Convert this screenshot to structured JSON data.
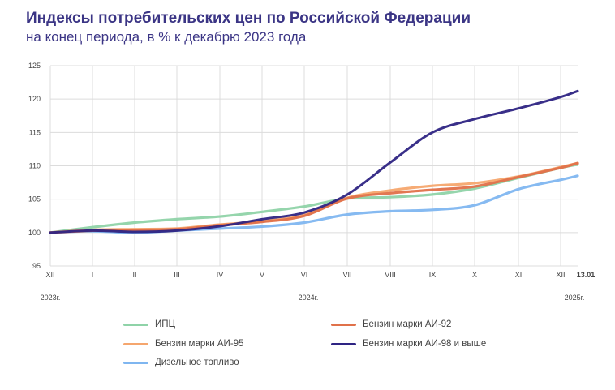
{
  "title": "Индексы потребительских цен по Российской Федерации",
  "subtitle": "на конец периода, в % к декабрю 2023 года",
  "chart_data": {
    "type": "line",
    "categories": [
      "XII",
      "I",
      "II",
      "III",
      "IV",
      "V",
      "VI",
      "VII",
      "VIII",
      "IX",
      "X",
      "XI",
      "XII",
      "13.01"
    ],
    "year_labels": [
      "2023г.",
      "2024г.",
      "2025г."
    ],
    "ylim": [
      95,
      125
    ],
    "yticks": [
      95,
      100,
      105,
      110,
      115,
      120,
      125
    ],
    "grid": true,
    "legend_position": "bottom",
    "series": [
      {
        "name": "ИПЦ",
        "color": "#8fd3a8",
        "values": [
          100,
          100.8,
          101.5,
          102.0,
          102.4,
          103.1,
          103.9,
          105.1,
          105.3,
          105.7,
          106.6,
          108.2,
          109.7,
          110.2
        ]
      },
      {
        "name": "Бензин марки АИ-92",
        "color": "#e0714a",
        "values": [
          100,
          100.3,
          100.4,
          100.5,
          101.1,
          101.6,
          102.5,
          105.1,
          105.9,
          106.4,
          106.9,
          108.3,
          109.7,
          110.4
        ]
      },
      {
        "name": "Бензин марки АИ-95",
        "color": "#f5a66e",
        "values": [
          100,
          100.4,
          100.5,
          100.6,
          101.2,
          101.7,
          102.6,
          105.2,
          106.3,
          107.0,
          107.4,
          108.4,
          109.8,
          110.4
        ]
      },
      {
        "name": "Бензин марки АИ-98 и выше",
        "color": "#2e2483",
        "values": [
          100,
          100.3,
          100.1,
          100.3,
          100.95,
          102.0,
          103.0,
          105.7,
          110.5,
          115.0,
          117.0,
          118.6,
          120.3,
          121.2
        ]
      },
      {
        "name": "Дизельное топливо",
        "color": "#7fb6f0",
        "values": [
          100,
          100.2,
          100.0,
          100.3,
          100.6,
          100.9,
          101.5,
          102.7,
          103.2,
          103.4,
          104.1,
          106.5,
          107.9,
          108.5
        ]
      }
    ]
  }
}
